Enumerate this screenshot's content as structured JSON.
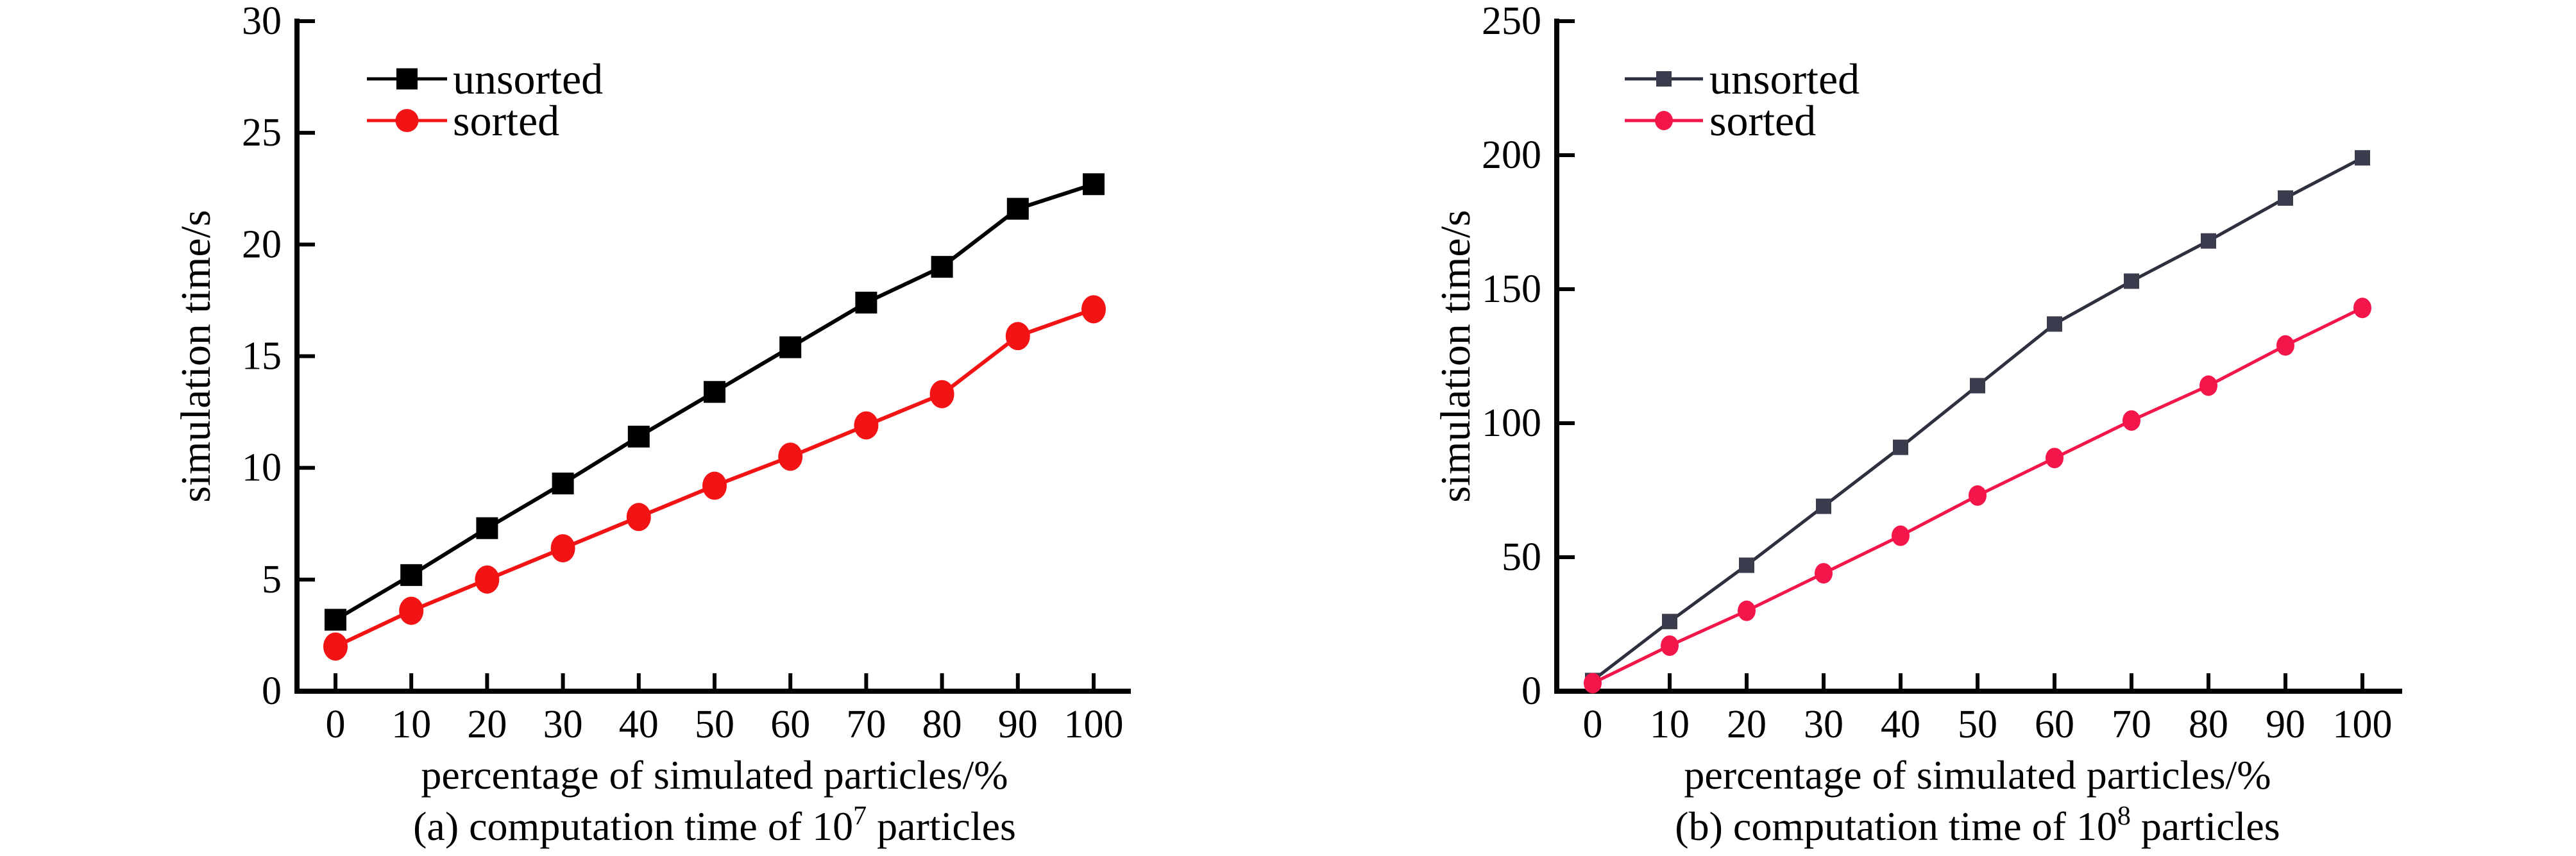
{
  "page": {
    "background": "#ffffff"
  },
  "chart_data": [
    {
      "id": "a",
      "type": "line",
      "caption": {
        "prefix": "(a) computation time of 10",
        "superscript": "7",
        "suffix": " particles"
      },
      "xlabel": "percentage of simulated particles/%",
      "ylabel": "simulation time/s",
      "xlim": [
        0,
        100
      ],
      "ylim": [
        0,
        30
      ],
      "xticks": [
        0,
        10,
        20,
        30,
        40,
        50,
        60,
        70,
        80,
        90,
        100
      ],
      "yticks": [
        0,
        5,
        10,
        15,
        20,
        25,
        30
      ],
      "grid": false,
      "legend_position": "top-left-inside",
      "axis_color": "#000000",
      "categories": [
        0,
        10,
        20,
        30,
        40,
        50,
        60,
        70,
        80,
        90,
        100
      ],
      "series": [
        {
          "name": "unsorted",
          "marker": "square",
          "color": "#000000",
          "line_color": "#000000",
          "values": [
            3.2,
            5.2,
            7.3,
            9.3,
            11.4,
            13.4,
            15.4,
            17.4,
            19.0,
            21.6,
            22.7
          ]
        },
        {
          "name": "sorted",
          "marker": "circle",
          "color": "#f21414",
          "line_color": "#f21414",
          "values": [
            2.0,
            3.6,
            5.0,
            6.4,
            7.8,
            9.2,
            10.5,
            11.9,
            13.3,
            15.9,
            17.1
          ]
        }
      ]
    },
    {
      "id": "b",
      "type": "line",
      "caption": {
        "prefix": "(b) computation time of 10",
        "superscript": "8",
        "suffix": " particles"
      },
      "xlabel": "percentage of simulated particles/%",
      "ylabel": "simulation time/s",
      "xlim": [
        0,
        100
      ],
      "ylim": [
        0,
        250
      ],
      "xticks": [
        0,
        10,
        20,
        30,
        40,
        50,
        60,
        70,
        80,
        90,
        100
      ],
      "yticks": [
        0,
        50,
        100,
        150,
        200,
        250
      ],
      "grid": false,
      "legend_position": "top-left-inside",
      "axis_color": "#000000",
      "categories": [
        0,
        10,
        20,
        30,
        40,
        50,
        60,
        70,
        80,
        90,
        100
      ],
      "series": [
        {
          "name": "unsorted",
          "marker": "square",
          "color": "#3a3b4c",
          "line_color": "#2e3040",
          "values": [
            4,
            26,
            47,
            69,
            91,
            114,
            137,
            153,
            168,
            184,
            199
          ]
        },
        {
          "name": "sorted",
          "marker": "circle",
          "color": "#f2164a",
          "line_color": "#f2164a",
          "values": [
            3,
            17,
            30,
            44,
            58,
            73,
            87,
            101,
            114,
            129,
            143
          ]
        }
      ]
    }
  ]
}
